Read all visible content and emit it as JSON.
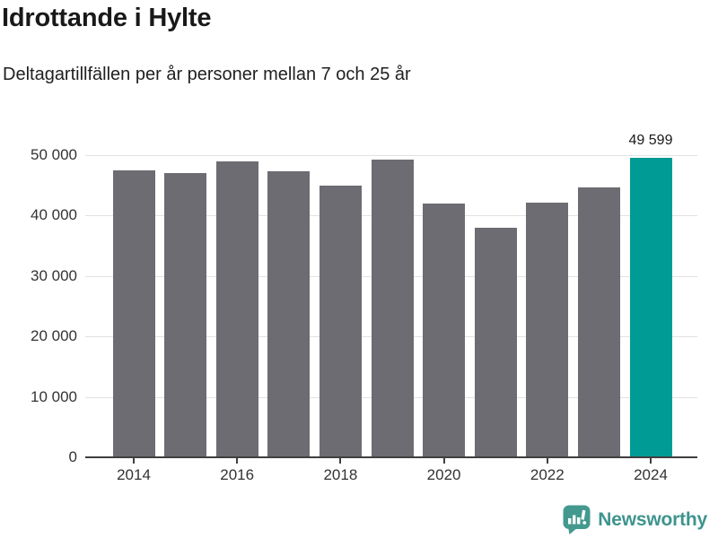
{
  "header": {
    "title": "Idrottande i Hylte",
    "subtitle": "Deltagartillfällen per år personer mellan 7 och 25 år"
  },
  "chart_data": {
    "type": "bar",
    "title": "Idrottande i Hylte",
    "subtitle": "Deltagartillfällen per år personer mellan 7 och 25 år",
    "categories": [
      "2014",
      "2015",
      "2016",
      "2017",
      "2018",
      "2019",
      "2020",
      "2021",
      "2022",
      "2023",
      "2024"
    ],
    "values": [
      47500,
      47100,
      49000,
      47400,
      45000,
      49250,
      42000,
      37950,
      42100,
      44650,
      49599
    ],
    "highlight_index": 10,
    "bar_color": "#6d6c72",
    "highlight_color": "#009b94",
    "value_label": {
      "index": 10,
      "text": "49 599"
    },
    "xlabel": "",
    "ylabel": "",
    "ylim": [
      0,
      50000
    ],
    "yticks": [
      {
        "value": 0,
        "label": "0"
      },
      {
        "value": 10000,
        "label": "10 000"
      },
      {
        "value": 20000,
        "label": "20 000"
      },
      {
        "value": 30000,
        "label": "30 000"
      },
      {
        "value": 40000,
        "label": "40 000"
      },
      {
        "value": 50000,
        "label": "50 000"
      }
    ],
    "xticks": [
      "2014",
      "2016",
      "2018",
      "2020",
      "2022",
      "2024"
    ],
    "grid": "horizontal-only",
    "legend": "none"
  },
  "footer": {
    "brand": "Newsworthy",
    "brand_color": "#3E948E",
    "icon_color": "#44998f"
  }
}
